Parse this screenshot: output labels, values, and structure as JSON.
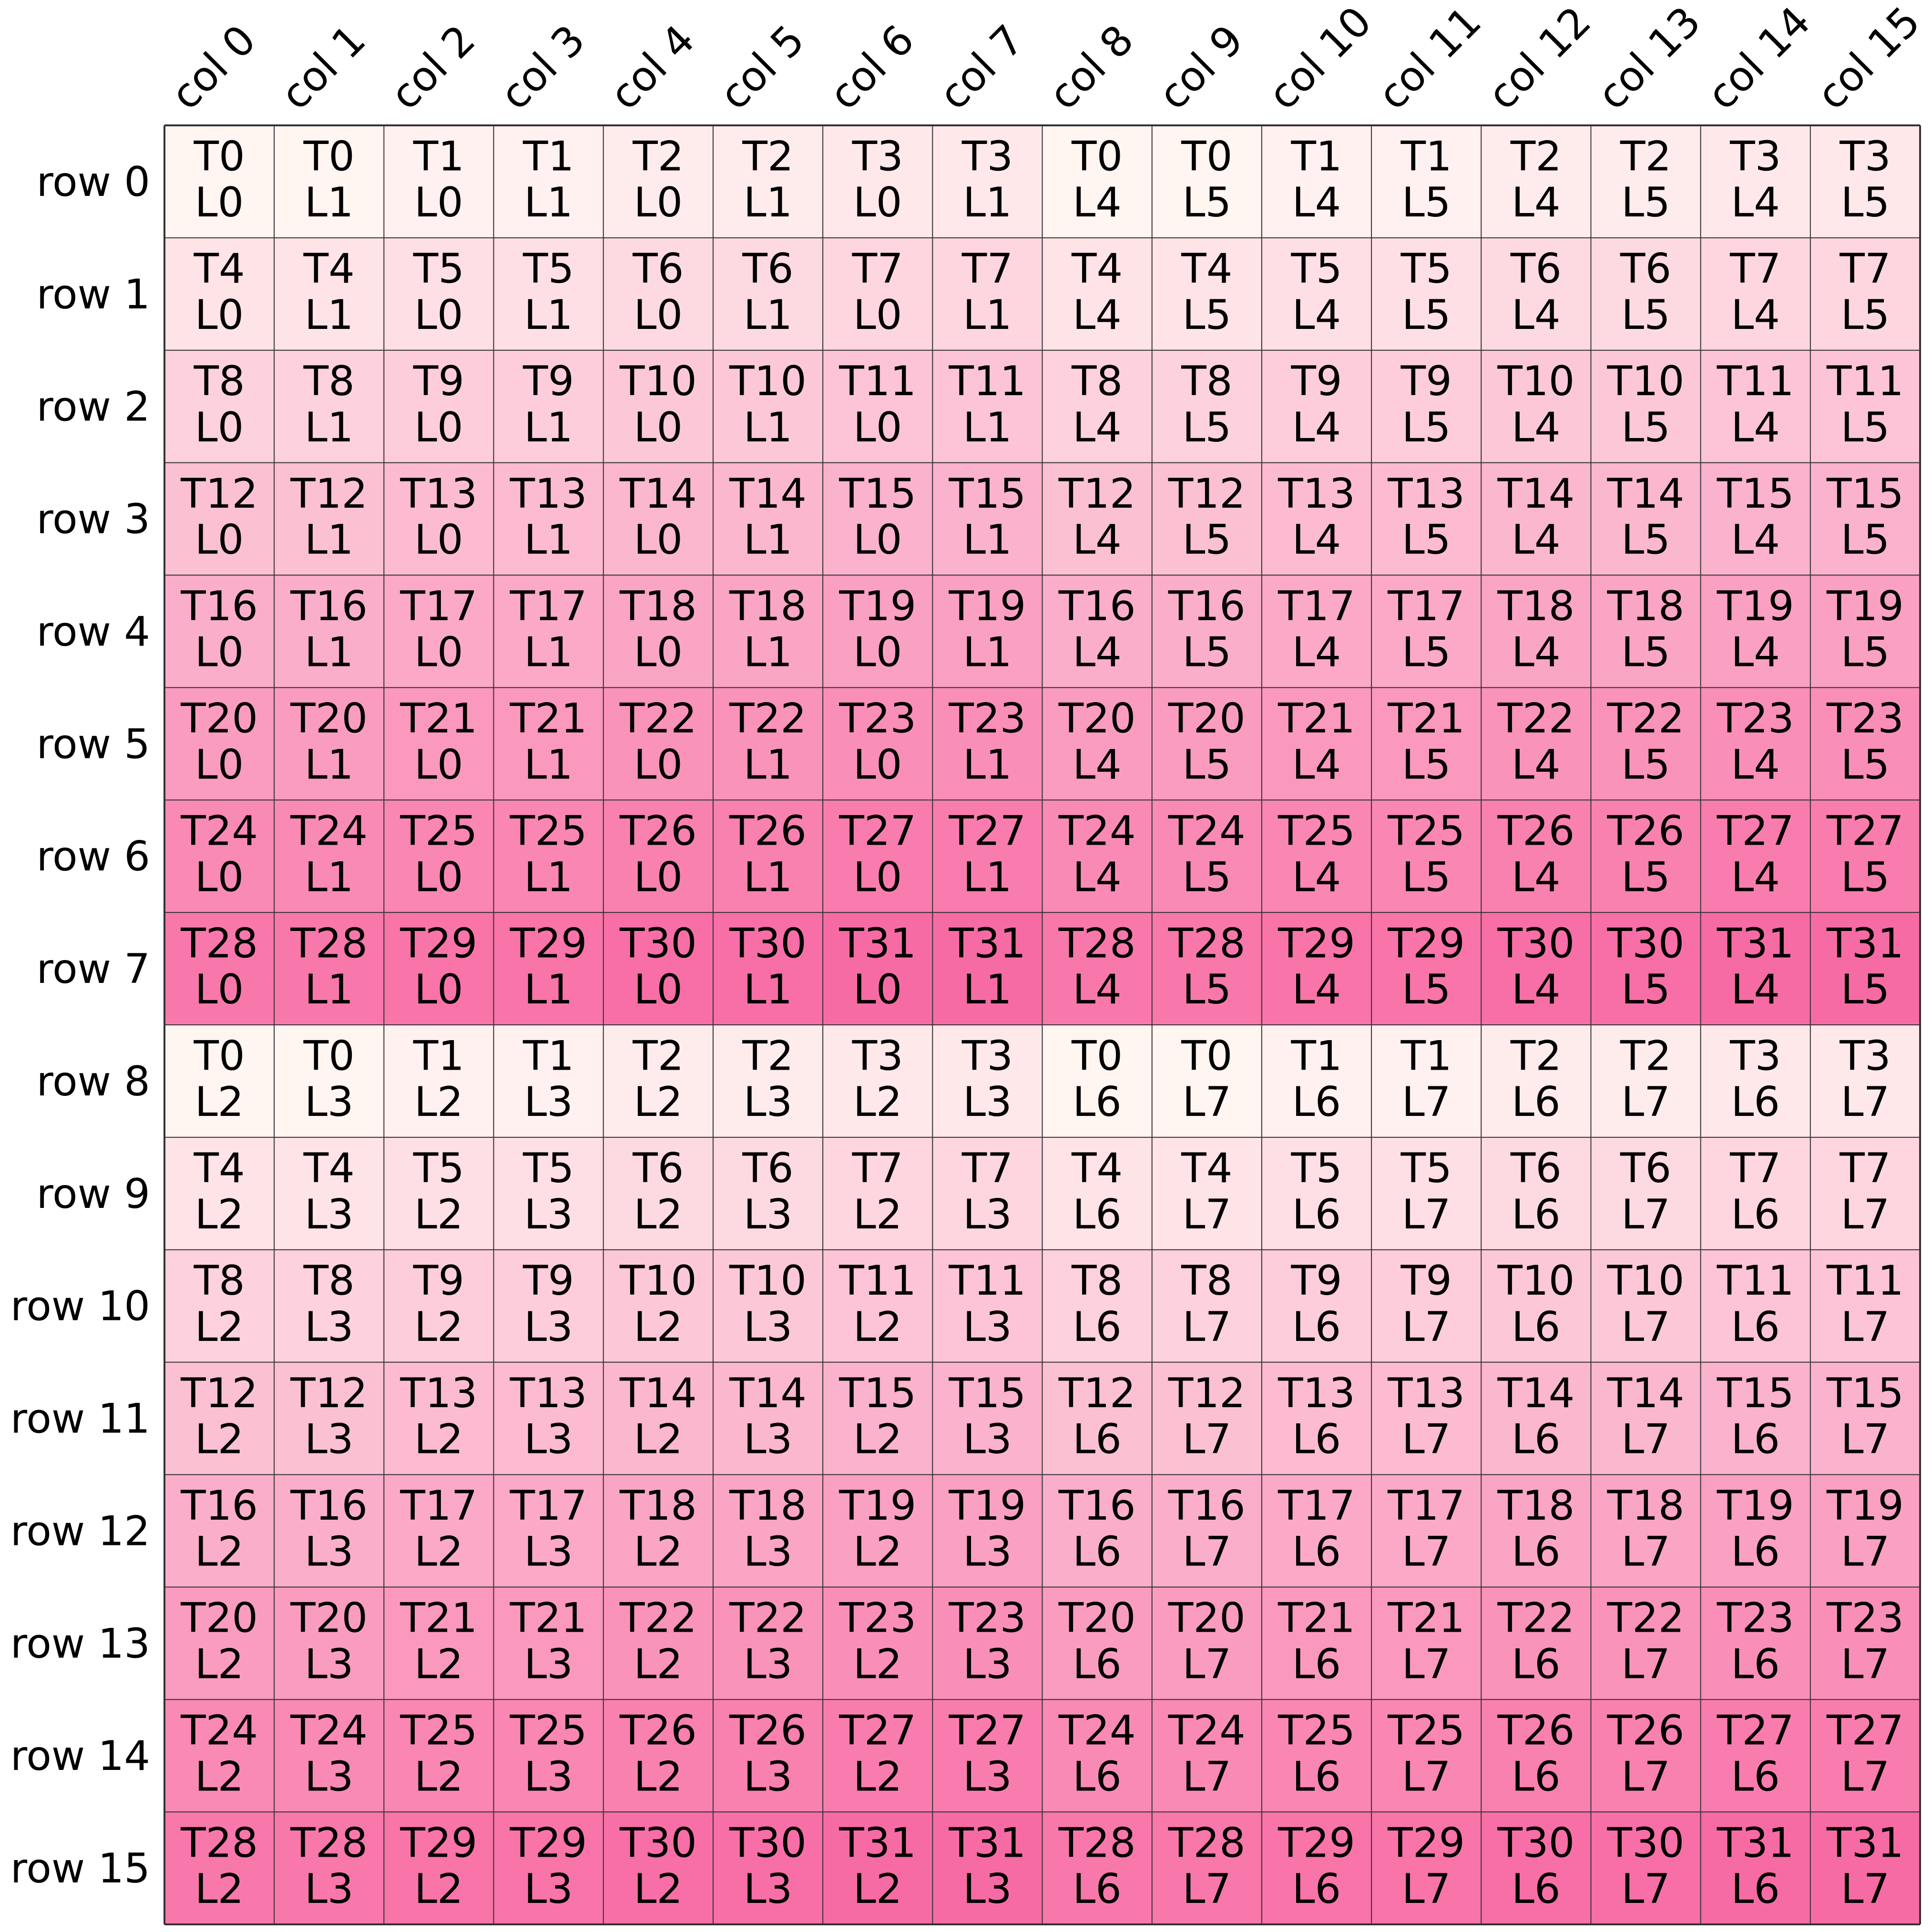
{
  "layout_grid": {
    "rows": 16,
    "cols": 16,
    "row_labels": [
      "row 0",
      "row 1",
      "row 2",
      "row 3",
      "row 4",
      "row 5",
      "row 6",
      "row 7",
      "row 8",
      "row 9",
      "row 10",
      "row 11",
      "row 12",
      "row 13",
      "row 14",
      "row 15"
    ],
    "col_labels": [
      "col 0",
      "col 1",
      "col 2",
      "col 3",
      "col 4",
      "col 5",
      "col 6",
      "col 7",
      "col 8",
      "col 9",
      "col 10",
      "col 11",
      "col 12",
      "col 13",
      "col 14",
      "col 15"
    ],
    "colors": {
      "light": "#fff5f1",
      "dark": "#f76ba4",
      "gridline": "#333333",
      "text": "#000000"
    },
    "cells": [
      [
        [
          "T0",
          "L0"
        ],
        [
          "T0",
          "L1"
        ],
        [
          "T1",
          "L0"
        ],
        [
          "T1",
          "L1"
        ],
        [
          "T2",
          "L0"
        ],
        [
          "T2",
          "L1"
        ],
        [
          "T3",
          "L0"
        ],
        [
          "T3",
          "L1"
        ],
        [
          "T0",
          "L4"
        ],
        [
          "T0",
          "L5"
        ],
        [
          "T1",
          "L4"
        ],
        [
          "T1",
          "L5"
        ],
        [
          "T2",
          "L4"
        ],
        [
          "T2",
          "L5"
        ],
        [
          "T3",
          "L4"
        ],
        [
          "T3",
          "L5"
        ]
      ],
      [
        [
          "T4",
          "L0"
        ],
        [
          "T4",
          "L1"
        ],
        [
          "T5",
          "L0"
        ],
        [
          "T5",
          "L1"
        ],
        [
          "T6",
          "L0"
        ],
        [
          "T6",
          "L1"
        ],
        [
          "T7",
          "L0"
        ],
        [
          "T7",
          "L1"
        ],
        [
          "T4",
          "L4"
        ],
        [
          "T4",
          "L5"
        ],
        [
          "T5",
          "L4"
        ],
        [
          "T5",
          "L5"
        ],
        [
          "T6",
          "L4"
        ],
        [
          "T6",
          "L5"
        ],
        [
          "T7",
          "L4"
        ],
        [
          "T7",
          "L5"
        ]
      ],
      [
        [
          "T8",
          "L0"
        ],
        [
          "T8",
          "L1"
        ],
        [
          "T9",
          "L0"
        ],
        [
          "T9",
          "L1"
        ],
        [
          "T10",
          "L0"
        ],
        [
          "T10",
          "L1"
        ],
        [
          "T11",
          "L0"
        ],
        [
          "T11",
          "L1"
        ],
        [
          "T8",
          "L4"
        ],
        [
          "T8",
          "L5"
        ],
        [
          "T9",
          "L4"
        ],
        [
          "T9",
          "L5"
        ],
        [
          "T10",
          "L4"
        ],
        [
          "T10",
          "L5"
        ],
        [
          "T11",
          "L4"
        ],
        [
          "T11",
          "L5"
        ]
      ],
      [
        [
          "T12",
          "L0"
        ],
        [
          "T12",
          "L1"
        ],
        [
          "T13",
          "L0"
        ],
        [
          "T13",
          "L1"
        ],
        [
          "T14",
          "L0"
        ],
        [
          "T14",
          "L1"
        ],
        [
          "T15",
          "L0"
        ],
        [
          "T15",
          "L1"
        ],
        [
          "T12",
          "L4"
        ],
        [
          "T12",
          "L5"
        ],
        [
          "T13",
          "L4"
        ],
        [
          "T13",
          "L5"
        ],
        [
          "T14",
          "L4"
        ],
        [
          "T14",
          "L5"
        ],
        [
          "T15",
          "L4"
        ],
        [
          "T15",
          "L5"
        ]
      ],
      [
        [
          "T16",
          "L0"
        ],
        [
          "T16",
          "L1"
        ],
        [
          "T17",
          "L0"
        ],
        [
          "T17",
          "L1"
        ],
        [
          "T18",
          "L0"
        ],
        [
          "T18",
          "L1"
        ],
        [
          "T19",
          "L0"
        ],
        [
          "T19",
          "L1"
        ],
        [
          "T16",
          "L4"
        ],
        [
          "T16",
          "L5"
        ],
        [
          "T17",
          "L4"
        ],
        [
          "T17",
          "L5"
        ],
        [
          "T18",
          "L4"
        ],
        [
          "T18",
          "L5"
        ],
        [
          "T19",
          "L4"
        ],
        [
          "T19",
          "L5"
        ]
      ],
      [
        [
          "T20",
          "L0"
        ],
        [
          "T20",
          "L1"
        ],
        [
          "T21",
          "L0"
        ],
        [
          "T21",
          "L1"
        ],
        [
          "T22",
          "L0"
        ],
        [
          "T22",
          "L1"
        ],
        [
          "T23",
          "L0"
        ],
        [
          "T23",
          "L1"
        ],
        [
          "T20",
          "L4"
        ],
        [
          "T20",
          "L5"
        ],
        [
          "T21",
          "L4"
        ],
        [
          "T21",
          "L5"
        ],
        [
          "T22",
          "L4"
        ],
        [
          "T22",
          "L5"
        ],
        [
          "T23",
          "L4"
        ],
        [
          "T23",
          "L5"
        ]
      ],
      [
        [
          "T24",
          "L0"
        ],
        [
          "T24",
          "L1"
        ],
        [
          "T25",
          "L0"
        ],
        [
          "T25",
          "L1"
        ],
        [
          "T26",
          "L0"
        ],
        [
          "T26",
          "L1"
        ],
        [
          "T27",
          "L0"
        ],
        [
          "T27",
          "L1"
        ],
        [
          "T24",
          "L4"
        ],
        [
          "T24",
          "L5"
        ],
        [
          "T25",
          "L4"
        ],
        [
          "T25",
          "L5"
        ],
        [
          "T26",
          "L4"
        ],
        [
          "T26",
          "L5"
        ],
        [
          "T27",
          "L4"
        ],
        [
          "T27",
          "L5"
        ]
      ],
      [
        [
          "T28",
          "L0"
        ],
        [
          "T28",
          "L1"
        ],
        [
          "T29",
          "L0"
        ],
        [
          "T29",
          "L1"
        ],
        [
          "T30",
          "L0"
        ],
        [
          "T30",
          "L1"
        ],
        [
          "T31",
          "L0"
        ],
        [
          "T31",
          "L1"
        ],
        [
          "T28",
          "L4"
        ],
        [
          "T28",
          "L5"
        ],
        [
          "T29",
          "L4"
        ],
        [
          "T29",
          "L5"
        ],
        [
          "T30",
          "L4"
        ],
        [
          "T30",
          "L5"
        ],
        [
          "T31",
          "L4"
        ],
        [
          "T31",
          "L5"
        ]
      ],
      [
        [
          "T0",
          "L2"
        ],
        [
          "T0",
          "L3"
        ],
        [
          "T1",
          "L2"
        ],
        [
          "T1",
          "L3"
        ],
        [
          "T2",
          "L2"
        ],
        [
          "T2",
          "L3"
        ],
        [
          "T3",
          "L2"
        ],
        [
          "T3",
          "L3"
        ],
        [
          "T0",
          "L6"
        ],
        [
          "T0",
          "L7"
        ],
        [
          "T1",
          "L6"
        ],
        [
          "T1",
          "L7"
        ],
        [
          "T2",
          "L6"
        ],
        [
          "T2",
          "L7"
        ],
        [
          "T3",
          "L6"
        ],
        [
          "T3",
          "L7"
        ]
      ],
      [
        [
          "T4",
          "L2"
        ],
        [
          "T4",
          "L3"
        ],
        [
          "T5",
          "L2"
        ],
        [
          "T5",
          "L3"
        ],
        [
          "T6",
          "L2"
        ],
        [
          "T6",
          "L3"
        ],
        [
          "T7",
          "L2"
        ],
        [
          "T7",
          "L3"
        ],
        [
          "T4",
          "L6"
        ],
        [
          "T4",
          "L7"
        ],
        [
          "T5",
          "L6"
        ],
        [
          "T5",
          "L7"
        ],
        [
          "T6",
          "L6"
        ],
        [
          "T6",
          "L7"
        ],
        [
          "T7",
          "L6"
        ],
        [
          "T7",
          "L7"
        ]
      ],
      [
        [
          "T8",
          "L2"
        ],
        [
          "T8",
          "L3"
        ],
        [
          "T9",
          "L2"
        ],
        [
          "T9",
          "L3"
        ],
        [
          "T10",
          "L2"
        ],
        [
          "T10",
          "L3"
        ],
        [
          "T11",
          "L2"
        ],
        [
          "T11",
          "L3"
        ],
        [
          "T8",
          "L6"
        ],
        [
          "T8",
          "L7"
        ],
        [
          "T9",
          "L6"
        ],
        [
          "T9",
          "L7"
        ],
        [
          "T10",
          "L6"
        ],
        [
          "T10",
          "L7"
        ],
        [
          "T11",
          "L6"
        ],
        [
          "T11",
          "L7"
        ]
      ],
      [
        [
          "T12",
          "L2"
        ],
        [
          "T12",
          "L3"
        ],
        [
          "T13",
          "L2"
        ],
        [
          "T13",
          "L3"
        ],
        [
          "T14",
          "L2"
        ],
        [
          "T14",
          "L3"
        ],
        [
          "T15",
          "L2"
        ],
        [
          "T15",
          "L3"
        ],
        [
          "T12",
          "L6"
        ],
        [
          "T12",
          "L7"
        ],
        [
          "T13",
          "L6"
        ],
        [
          "T13",
          "L7"
        ],
        [
          "T14",
          "L6"
        ],
        [
          "T14",
          "L7"
        ],
        [
          "T15",
          "L6"
        ],
        [
          "T15",
          "L7"
        ]
      ],
      [
        [
          "T16",
          "L2"
        ],
        [
          "T16",
          "L3"
        ],
        [
          "T17",
          "L2"
        ],
        [
          "T17",
          "L3"
        ],
        [
          "T18",
          "L2"
        ],
        [
          "T18",
          "L3"
        ],
        [
          "T19",
          "L2"
        ],
        [
          "T19",
          "L3"
        ],
        [
          "T16",
          "L6"
        ],
        [
          "T16",
          "L7"
        ],
        [
          "T17",
          "L6"
        ],
        [
          "T17",
          "L7"
        ],
        [
          "T18",
          "L6"
        ],
        [
          "T18",
          "L7"
        ],
        [
          "T19",
          "L6"
        ],
        [
          "T19",
          "L7"
        ]
      ],
      [
        [
          "T20",
          "L2"
        ],
        [
          "T20",
          "L3"
        ],
        [
          "T21",
          "L2"
        ],
        [
          "T21",
          "L3"
        ],
        [
          "T22",
          "L2"
        ],
        [
          "T22",
          "L3"
        ],
        [
          "T23",
          "L2"
        ],
        [
          "T23",
          "L3"
        ],
        [
          "T20",
          "L6"
        ],
        [
          "T20",
          "L7"
        ],
        [
          "T21",
          "L6"
        ],
        [
          "T21",
          "L7"
        ],
        [
          "T22",
          "L6"
        ],
        [
          "T22",
          "L7"
        ],
        [
          "T23",
          "L6"
        ],
        [
          "T23",
          "L7"
        ]
      ],
      [
        [
          "T24",
          "L2"
        ],
        [
          "T24",
          "L3"
        ],
        [
          "T25",
          "L2"
        ],
        [
          "T25",
          "L3"
        ],
        [
          "T26",
          "L2"
        ],
        [
          "T26",
          "L3"
        ],
        [
          "T27",
          "L2"
        ],
        [
          "T27",
          "L3"
        ],
        [
          "T24",
          "L6"
        ],
        [
          "T24",
          "L7"
        ],
        [
          "T25",
          "L6"
        ],
        [
          "T25",
          "L7"
        ],
        [
          "T26",
          "L6"
        ],
        [
          "T26",
          "L7"
        ],
        [
          "T27",
          "L6"
        ],
        [
          "T27",
          "L7"
        ]
      ],
      [
        [
          "T28",
          "L2"
        ],
        [
          "T28",
          "L3"
        ],
        [
          "T29",
          "L2"
        ],
        [
          "T29",
          "L3"
        ],
        [
          "T30",
          "L2"
        ],
        [
          "T30",
          "L3"
        ],
        [
          "T31",
          "L2"
        ],
        [
          "T31",
          "L3"
        ],
        [
          "T28",
          "L6"
        ],
        [
          "T28",
          "L7"
        ],
        [
          "T29",
          "L6"
        ],
        [
          "T29",
          "L7"
        ],
        [
          "T30",
          "L6"
        ],
        [
          "T30",
          "L7"
        ],
        [
          "T31",
          "L6"
        ],
        [
          "T31",
          "L7"
        ]
      ]
    ]
  }
}
